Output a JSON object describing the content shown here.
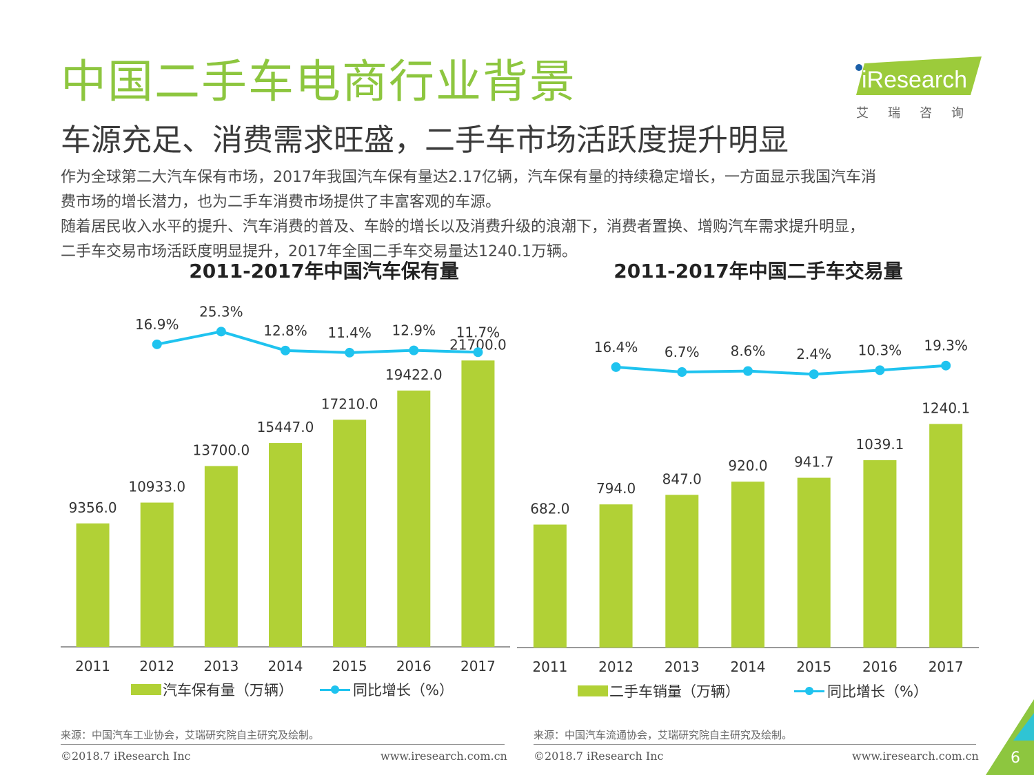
{
  "title": "中国二手车电商行业背景",
  "subtitle": "车源充足、消费需求旺盛，二手车市场活跃度提升明显",
  "paragraphs": [
    "作为全球第二大汽车保有市场，2017年我国汽车保有量达2.17亿辆，汽车保有量的持续稳定增长，一方面显示我国汽车消",
    "费市场的增长潜力，也为二手车消费市场提供了丰富客观的车源。",
    "随着居民收入水平的提升、汽车消费的普及、车龄的增长以及消费升级的浪潮下，消费者置换、增购汽车需求提升明显，",
    "二手车交易市场活跃度明显提升，2017年全国二手车交易量达1240.1万辆。"
  ],
  "logo": {
    "text": "iResearch",
    "cn": "艾瑞咨询"
  },
  "colors": {
    "bar": "#b1d136",
    "line": "#1fc3ef",
    "title": "#8dc63f"
  },
  "chart_data": [
    {
      "type": "bar",
      "title": "2011-2017年中国汽车保有量",
      "categories": [
        "2011",
        "2012",
        "2013",
        "2014",
        "2015",
        "2016",
        "2017"
      ],
      "series": [
        {
          "name": "汽车保有量（万辆）",
          "type": "bar",
          "values": [
            9356.0,
            10933.0,
            13700.0,
            15447.0,
            17210.0,
            19422.0,
            21700.0
          ],
          "labels": [
            "9356.0",
            "10933.0",
            "13700.0",
            "15447.0",
            "17210.0",
            "19422.0",
            "21700.0"
          ]
        },
        {
          "name": "同比增长（%）",
          "type": "line",
          "values": [
            null,
            16.9,
            25.3,
            12.8,
            11.4,
            12.9,
            11.7
          ],
          "labels": [
            "",
            "16.9%",
            "25.3%",
            "12.8%",
            "11.4%",
            "12.9%",
            "11.7%"
          ]
        }
      ],
      "legend_position": "bottom",
      "source": "来源：中国汽车工业协会，艾瑞研究院自主研究及绘制。",
      "footer_left": "©2018.7 iResearch Inc",
      "footer_right": "www.iresearch.com.cn"
    },
    {
      "type": "bar",
      "title": "2011-2017年中国二手车交易量",
      "categories": [
        "2011",
        "2012",
        "2013",
        "2014",
        "2015",
        "2016",
        "2017"
      ],
      "series": [
        {
          "name": "二手车销量（万辆）",
          "type": "bar",
          "values": [
            682.0,
            794.0,
            847.0,
            920.0,
            941.7,
            1039.1,
            1240.1
          ],
          "labels": [
            "682.0",
            "794.0",
            "847.0",
            "920.0",
            "941.7",
            "1039.1",
            "1240.1"
          ]
        },
        {
          "name": "同比增长（%）",
          "type": "line",
          "values": [
            null,
            16.4,
            6.7,
            8.6,
            2.4,
            10.3,
            19.3
          ],
          "labels": [
            "",
            "16.4%",
            "6.7%",
            "8.6%",
            "2.4%",
            "10.3%",
            "19.3%"
          ]
        }
      ],
      "legend_position": "bottom",
      "source": "来源：中国汽车流通协会，艾瑞研究院自主研究及绘制。",
      "footer_left": "©2018.7 iResearch Inc",
      "footer_right": "www.iresearch.com.cn"
    }
  ],
  "page_number": "6"
}
